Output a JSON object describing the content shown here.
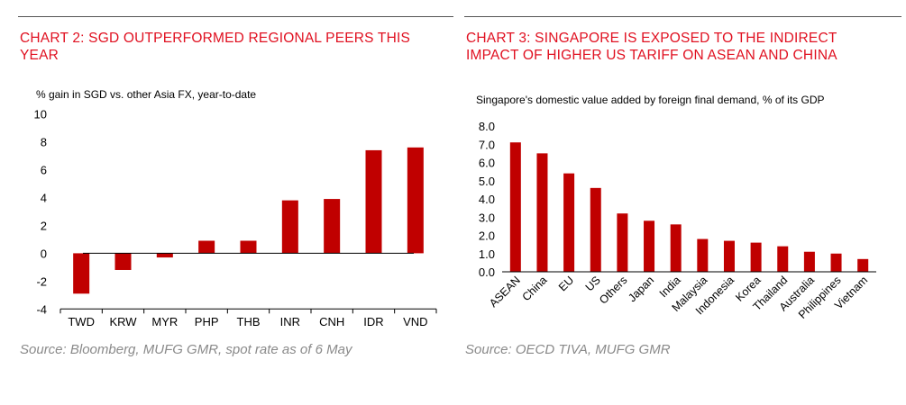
{
  "colors": {
    "title": "#e01020",
    "bar": "#c00000",
    "source": "#8a8a8a"
  },
  "chart_data": [
    {
      "type": "bar",
      "title": "CHART 2: SGD OUTPERFORMED REGIONAL PEERS THIS YEAR",
      "ylabel": "% gain in SGD vs. other Asia FX, year-to-date",
      "source": "Source: Bloomberg, MUFG GMR, spot rate as of 6 May",
      "categories": [
        "TWD",
        "KRW",
        "MYR",
        "PHP",
        "THB",
        "INR",
        "CNH",
        "IDR",
        "VND"
      ],
      "values": [
        -2.9,
        -1.2,
        -0.3,
        0.9,
        0.9,
        3.8,
        3.9,
        7.4,
        7.6
      ],
      "ylim": [
        -4,
        10
      ],
      "yticks": [
        "-4",
        "-2",
        "0",
        "2",
        "4",
        "6",
        "8",
        "10"
      ],
      "grid": false
    },
    {
      "type": "bar",
      "title": "CHART 3: SINGAPORE IS EXPOSED TO THE INDIRECT IMPACT OF HIGHER US TARIFF ON ASEAN AND CHINA",
      "ylabel": "Singapore's domestic value added by foreign final demand, % of its GDP",
      "source": "Source: OECD TIVA, MUFG GMR",
      "categories": [
        "ASEAN",
        "China",
        "EU",
        "US",
        "Others",
        "Japan",
        "India",
        "Malaysia",
        "Indonesia",
        "Korea",
        "Thailand",
        "Australia",
        "Philippines",
        "Vietnam"
      ],
      "values": [
        7.1,
        6.5,
        5.4,
        4.6,
        3.2,
        2.8,
        2.6,
        1.8,
        1.7,
        1.6,
        1.4,
        1.1,
        1.0,
        0.7
      ],
      "ylim": [
        0,
        8
      ],
      "yticks": [
        "0.0",
        "1.0",
        "2.0",
        "3.0",
        "4.0",
        "5.0",
        "6.0",
        "7.0",
        "8.0"
      ],
      "grid": false
    }
  ]
}
